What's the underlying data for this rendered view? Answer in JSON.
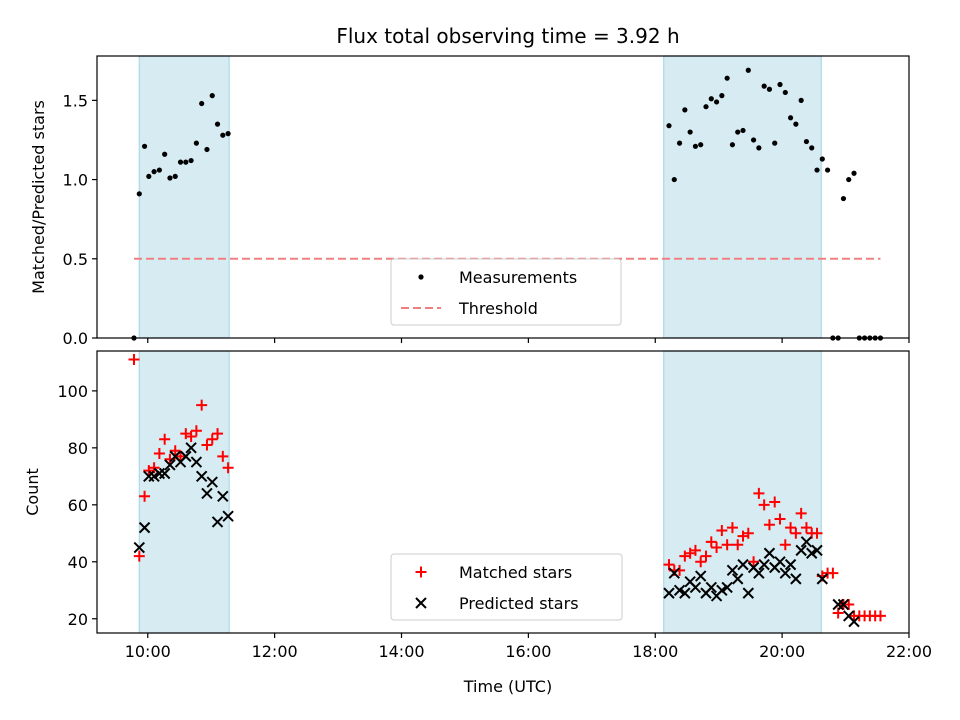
{
  "chart_data": [
    {
      "type": "scatter",
      "title": "Flux total observing time = 3.92 h",
      "xlabel": "",
      "ylabel": "Matched/Predicted stars",
      "xlim": [
        "09:12",
        "22:00"
      ],
      "ylim": [
        0,
        1.78
      ],
      "x_ticks": [
        "10:00",
        "12:00",
        "14:00",
        "16:00",
        "18:00",
        "20:00",
        "22:00"
      ],
      "y_ticks": [
        "0.0",
        "0.5",
        "1.0",
        "1.5"
      ],
      "shaded_intervals": [
        [
          "09:52",
          "11:17"
        ],
        [
          "18:08",
          "20:37"
        ]
      ],
      "shade_color": "#add8e6",
      "legend_position": "lower-center",
      "series": [
        {
          "name": "Measurements",
          "kind": "points",
          "color": "#000000",
          "points": [
            [
              "09:47",
              0.0
            ],
            [
              "09:52",
              0.91
            ],
            [
              "09:57",
              1.21
            ],
            [
              "10:01",
              1.02
            ],
            [
              "10:06",
              1.05
            ],
            [
              "10:11",
              1.06
            ],
            [
              "10:16",
              1.16
            ],
            [
              "10:21",
              1.01
            ],
            [
              "10:26",
              1.02
            ],
            [
              "10:31",
              1.11
            ],
            [
              "10:36",
              1.11
            ],
            [
              "10:41",
              1.12
            ],
            [
              "10:46",
              1.23
            ],
            [
              "10:51",
              1.48
            ],
            [
              "10:56",
              1.19
            ],
            [
              "11:01",
              1.53
            ],
            [
              "11:06",
              1.35
            ],
            [
              "11:11",
              1.28
            ],
            [
              "11:16",
              1.29
            ],
            [
              "18:13",
              1.34
            ],
            [
              "18:18",
              1.0
            ],
            [
              "18:23",
              1.23
            ],
            [
              "18:28",
              1.44
            ],
            [
              "18:33",
              1.3
            ],
            [
              "18:38",
              1.21
            ],
            [
              "18:43",
              1.22
            ],
            [
              "18:48",
              1.46
            ],
            [
              "18:53",
              1.51
            ],
            [
              "18:58",
              1.49
            ],
            [
              "19:03",
              1.53
            ],
            [
              "19:08",
              1.64
            ],
            [
              "19:13",
              1.22
            ],
            [
              "19:18",
              1.3
            ],
            [
              "19:23",
              1.31
            ],
            [
              "19:28",
              1.69
            ],
            [
              "19:33",
              1.25
            ],
            [
              "19:38",
              1.2
            ],
            [
              "19:43",
              1.59
            ],
            [
              "19:48",
              1.57
            ],
            [
              "19:53",
              1.23
            ],
            [
              "19:58",
              1.6
            ],
            [
              "20:03",
              1.55
            ],
            [
              "20:08",
              1.39
            ],
            [
              "20:13",
              1.35
            ],
            [
              "20:18",
              1.5
            ],
            [
              "20:23",
              1.24
            ],
            [
              "20:28",
              1.2
            ],
            [
              "20:33",
              1.06
            ],
            [
              "20:38",
              1.13
            ],
            [
              "20:43",
              1.06
            ],
            [
              "20:48",
              0.0
            ],
            [
              "20:53",
              0.0
            ],
            [
              "20:58",
              0.88
            ],
            [
              "21:03",
              1.0
            ],
            [
              "21:08",
              1.04
            ],
            [
              "21:13",
              0.0
            ],
            [
              "21:18",
              0.0
            ],
            [
              "21:23",
              0.0
            ],
            [
              "21:28",
              0.0
            ],
            [
              "21:33",
              0.0
            ]
          ]
        },
        {
          "name": "Threshold",
          "kind": "dashed-line",
          "color": "#f08080",
          "points": [
            [
              "09:47",
              0.5
            ],
            [
              "21:33",
              0.5
            ]
          ]
        }
      ]
    },
    {
      "type": "scatter",
      "title": "",
      "xlabel": "Time (UTC)",
      "ylabel": "Count",
      "xlim": [
        "09:12",
        "22:00"
      ],
      "ylim": [
        15,
        114
      ],
      "x_ticks": [
        "10:00",
        "12:00",
        "14:00",
        "16:00",
        "18:00",
        "20:00",
        "22:00"
      ],
      "y_ticks": [
        "20",
        "40",
        "60",
        "80",
        "100"
      ],
      "shaded_intervals": [
        [
          "09:52",
          "11:17"
        ],
        [
          "18:08",
          "20:37"
        ]
      ],
      "shade_color": "#add8e6",
      "legend_position": "lower-center",
      "series": [
        {
          "name": "Matched stars",
          "kind": "plus",
          "color": "#ff0000",
          "points": [
            [
              "09:47",
              111
            ],
            [
              "09:52",
              42
            ],
            [
              "09:57",
              63
            ],
            [
              "10:01",
              72
            ],
            [
              "10:06",
              73
            ],
            [
              "10:11",
              78
            ],
            [
              "10:16",
              83
            ],
            [
              "10:21",
              76
            ],
            [
              "10:26",
              79
            ],
            [
              "10:31",
              77
            ],
            [
              "10:36",
              85
            ],
            [
              "10:41",
              84
            ],
            [
              "10:46",
              86
            ],
            [
              "10:51",
              95
            ],
            [
              "10:56",
              81
            ],
            [
              "11:01",
              83
            ],
            [
              "11:06",
              85
            ],
            [
              "11:11",
              77
            ],
            [
              "11:16",
              73
            ],
            [
              "18:13",
              39
            ],
            [
              "18:18",
              37
            ],
            [
              "18:23",
              37
            ],
            [
              "18:28",
              42
            ],
            [
              "18:33",
              43
            ],
            [
              "18:38",
              44
            ],
            [
              "18:43",
              40
            ],
            [
              "18:48",
              42
            ],
            [
              "18:53",
              47
            ],
            [
              "18:58",
              45
            ],
            [
              "19:03",
              51
            ],
            [
              "19:08",
              46
            ],
            [
              "19:13",
              52
            ],
            [
              "19:18",
              46
            ],
            [
              "19:23",
              49
            ],
            [
              "19:28",
              50
            ],
            [
              "19:33",
              40
            ],
            [
              "19:38",
              64
            ],
            [
              "19:43",
              60
            ],
            [
              "19:48",
              53
            ],
            [
              "19:53",
              61
            ],
            [
              "19:58",
              55
            ],
            [
              "20:03",
              46
            ],
            [
              "20:08",
              52
            ],
            [
              "20:13",
              50
            ],
            [
              "20:18",
              57
            ],
            [
              "20:23",
              52
            ],
            [
              "20:28",
              50
            ],
            [
              "20:33",
              50
            ],
            [
              "20:38",
              35
            ],
            [
              "20:43",
              36
            ],
            [
              "20:48",
              36
            ],
            [
              "20:53",
              22
            ],
            [
              "20:58",
              25
            ],
            [
              "21:03",
              25
            ],
            [
              "21:08",
              21
            ],
            [
              "21:13",
              21
            ],
            [
              "21:18",
              21
            ],
            [
              "21:23",
              21
            ],
            [
              "21:28",
              21
            ],
            [
              "21:33",
              21
            ]
          ]
        },
        {
          "name": "Predicted stars",
          "kind": "cross",
          "color": "#000000",
          "points": [
            [
              "09:52",
              45
            ],
            [
              "09:57",
              52
            ],
            [
              "10:01",
              70
            ],
            [
              "10:06",
              70
            ],
            [
              "10:11",
              71
            ],
            [
              "10:16",
              71
            ],
            [
              "10:21",
              74
            ],
            [
              "10:26",
              77
            ],
            [
              "10:31",
              75
            ],
            [
              "10:36",
              77
            ],
            [
              "10:41",
              80
            ],
            [
              "10:46",
              75
            ],
            [
              "10:51",
              70
            ],
            [
              "10:56",
              64
            ],
            [
              "11:01",
              68
            ],
            [
              "11:06",
              54
            ],
            [
              "11:11",
              63
            ],
            [
              "11:16",
              56
            ],
            [
              "18:13",
              29
            ],
            [
              "18:18",
              36
            ],
            [
              "18:23",
              30
            ],
            [
              "18:28",
              29
            ],
            [
              "18:33",
              33
            ],
            [
              "18:38",
              31
            ],
            [
              "18:43",
              35
            ],
            [
              "18:48",
              29
            ],
            [
              "18:53",
              31
            ],
            [
              "18:58",
              28
            ],
            [
              "19:03",
              30
            ],
            [
              "19:08",
              31
            ],
            [
              "19:13",
              37
            ],
            [
              "19:18",
              34
            ],
            [
              "19:23",
              39
            ],
            [
              "19:28",
              29
            ],
            [
              "19:33",
              38
            ],
            [
              "19:38",
              36
            ],
            [
              "19:43",
              39
            ],
            [
              "19:48",
              43
            ],
            [
              "19:53",
              38
            ],
            [
              "19:58",
              40
            ],
            [
              "20:03",
              36
            ],
            [
              "20:08",
              39
            ],
            [
              "20:13",
              34
            ],
            [
              "20:18",
              44
            ],
            [
              "20:23",
              47
            ],
            [
              "20:28",
              43
            ],
            [
              "20:33",
              44
            ],
            [
              "20:38",
              34
            ],
            [
              "20:53",
              25
            ],
            [
              "20:58",
              25
            ],
            [
              "21:03",
              21
            ],
            [
              "21:08",
              19
            ]
          ]
        }
      ]
    }
  ]
}
